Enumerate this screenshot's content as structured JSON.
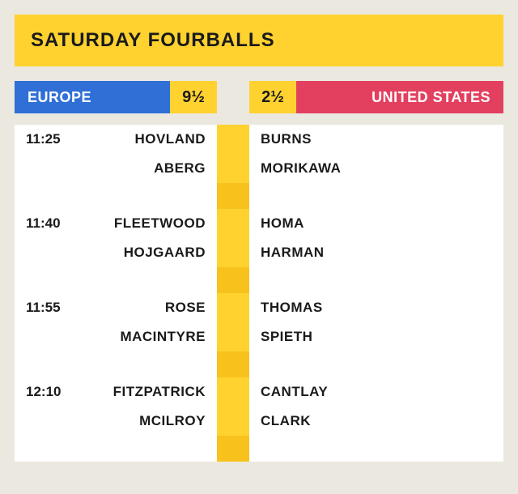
{
  "title": "SATURDAY FOURBALLS",
  "teams": {
    "europe": {
      "label": "EUROPE",
      "score": "9½"
    },
    "usa": {
      "label": "UNITED STATES",
      "score": "2½"
    }
  },
  "colors": {
    "background": "#ebe8e0",
    "yellow": "#ffd230",
    "yellow_dark": "#f8c21c",
    "europe": "#2f6fd6",
    "usa": "#e34060",
    "white": "#ffffff",
    "text": "#1a1a1a"
  },
  "matches": [
    {
      "time": "11:25",
      "europe": [
        "HOVLAND",
        "ABERG"
      ],
      "usa": [
        "BURNS",
        "MORIKAWA"
      ]
    },
    {
      "time": "11:40",
      "europe": [
        "FLEETWOOD",
        "HOJGAARD"
      ],
      "usa": [
        "HOMA",
        "HARMAN"
      ]
    },
    {
      "time": "11:55",
      "europe": [
        "ROSE",
        "MACINTYRE"
      ],
      "usa": [
        "THOMAS",
        "SPIETH"
      ]
    },
    {
      "time": "12:10",
      "europe": [
        "FITZPATRICK",
        "MCILROY"
      ],
      "usa": [
        "CANTLAY",
        "CLARK"
      ]
    }
  ]
}
